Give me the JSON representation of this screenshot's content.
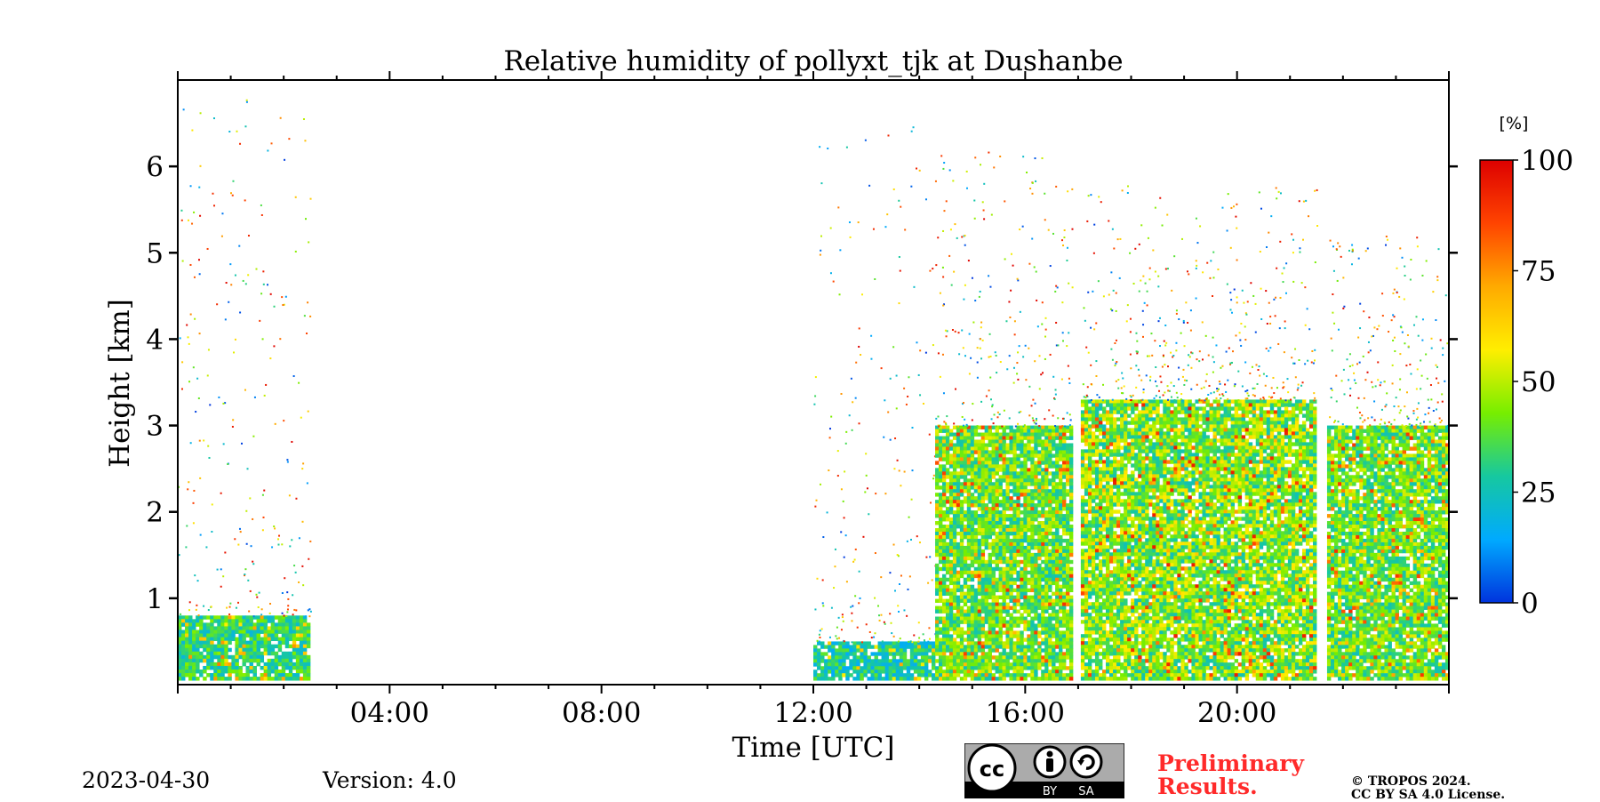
{
  "chart_data": {
    "type": "heatmap",
    "title": "Relative humidity of pollyxt_tjk at Dushanbe",
    "xlabel": "Time [UTC]",
    "ylabel": "Height [km]",
    "xlim_hours": [
      0,
      24
    ],
    "ylim_km": [
      0,
      7
    ],
    "x_ticks": [
      {
        "value": 4,
        "label": "04:00"
      },
      {
        "value": 8,
        "label": "08:00"
      },
      {
        "value": 12,
        "label": "12:00"
      },
      {
        "value": 16,
        "label": "16:00"
      },
      {
        "value": 20,
        "label": "20:00"
      }
    ],
    "y_ticks": [
      {
        "value": 1,
        "label": "1"
      },
      {
        "value": 2,
        "label": "2"
      },
      {
        "value": 3,
        "label": "3"
      },
      {
        "value": 4,
        "label": "4"
      },
      {
        "value": 5,
        "label": "5"
      },
      {
        "value": 6,
        "label": "6"
      }
    ],
    "colorbar": {
      "unit": "[%]",
      "range": [
        0,
        100
      ],
      "ticks": [
        {
          "value": 0,
          "label": "0"
        },
        {
          "value": 25,
          "label": "25"
        },
        {
          "value": 50,
          "label": "50"
        },
        {
          "value": 75,
          "label": "75"
        },
        {
          "value": 100,
          "label": "100"
        }
      ],
      "colormap": [
        "#0033dd",
        "#00aaff",
        "#16c8a0",
        "#77ee00",
        "#ffee00",
        "#ffaa00",
        "#ff4400",
        "#dd0000"
      ]
    },
    "data_segments": [
      {
        "start_hour": 0.0,
        "end_hour": 2.5,
        "dense_top_km": 0.8,
        "sparse_top_km": 6.8,
        "dominant_rh_low": 20,
        "dominant_rh_high": 45
      },
      {
        "start_hour": 12.0,
        "end_hour": 14.3,
        "dense_top_km": 0.5,
        "sparse_top_km": 6.5,
        "dominant_rh_low": 15,
        "dominant_rh_high": 40
      },
      {
        "start_hour": 14.3,
        "end_hour": 16.9,
        "dense_top_km": 3.0,
        "sparse_top_km": 6.2,
        "dominant_rh_low": 25,
        "dominant_rh_high": 55
      },
      {
        "start_hour": 17.05,
        "end_hour": 21.5,
        "dense_top_km": 3.3,
        "sparse_top_km": 5.8,
        "dominant_rh_low": 25,
        "dominant_rh_high": 60
      },
      {
        "start_hour": 21.7,
        "end_hour": 24.0,
        "dense_top_km": 3.0,
        "sparse_top_km": 5.2,
        "dominant_rh_low": 25,
        "dominant_rh_high": 55
      }
    ],
    "no_data_gaps": [
      {
        "start_hour": 2.5,
        "end_hour": 12.0
      },
      {
        "start_hour": 16.9,
        "end_hour": 17.05
      },
      {
        "start_hour": 21.5,
        "end_hour": 21.7
      }
    ]
  },
  "footer": {
    "date": "2023-04-30",
    "version": "Version: 4.0",
    "preliminary_line1": "Preliminary",
    "preliminary_line2": "Results.",
    "copyright_line1": "© TROPOS 2024.",
    "copyright_line2": "CC BY SA 4.0 License.",
    "license_badge_label_by": "BY",
    "license_badge_label_sa": "SA",
    "license_badge_cc": "cc"
  }
}
